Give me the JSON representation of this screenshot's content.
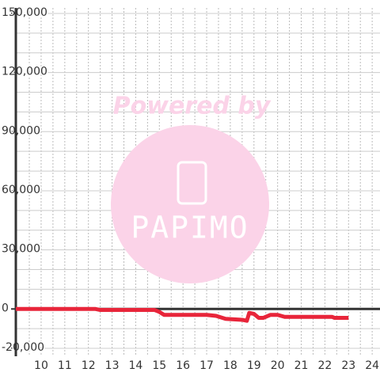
{
  "chart_data": {
    "type": "line",
    "watermark_title": "Powered by",
    "watermark_brand": "PAPIMO",
    "x": [
      8.93,
      12.3,
      12.5,
      14.8,
      15.0,
      15.2,
      17.0,
      17.4,
      17.8,
      18.5,
      18.7,
      18.8,
      19.0,
      19.2,
      19.4,
      19.7,
      20.0,
      20.3,
      21.0,
      22.3,
      22.4,
      23.0
    ],
    "series": [
      {
        "color": "#e8253a",
        "values": [
          0,
          0,
          -500,
          -500,
          -1500,
          -3000,
          -3000,
          -3500,
          -5000,
          -5500,
          -6000,
          -2000,
          -2500,
          -4500,
          -4500,
          -3000,
          -3000,
          -4000,
          -4000,
          -4000,
          -4500,
          -4500
        ]
      }
    ],
    "xlim": [
      8.93,
      24.33
    ],
    "ylim": [
      -24000,
      152800
    ],
    "xticks": [
      10,
      11,
      12,
      13,
      14,
      15,
      16,
      17,
      18,
      19,
      20,
      21,
      22,
      23,
      24
    ],
    "minor_xticks": [
      9.5,
      10.5,
      11.5,
      12.5,
      13.5,
      14.5,
      15.5,
      16.5,
      17.5,
      18.5,
      19.5,
      20.5,
      21.5,
      22.5,
      23.5
    ],
    "yticks": [
      {
        "value": -20000,
        "label": "-20,000"
      },
      0,
      {
        "value": 30000,
        "label": "30,000"
      },
      {
        "value": 60000,
        "label": "60,000"
      },
      {
        "value": 90000,
        "label": "90,000"
      },
      {
        "value": 120000,
        "label": "120,000"
      },
      {
        "value": 150000,
        "label": "150,000"
      }
    ],
    "minor_yticks": [
      -10000,
      10000,
      20000,
      40000,
      50000,
      70000,
      80000,
      100000,
      110000,
      130000,
      140000
    ],
    "grid": true
  }
}
